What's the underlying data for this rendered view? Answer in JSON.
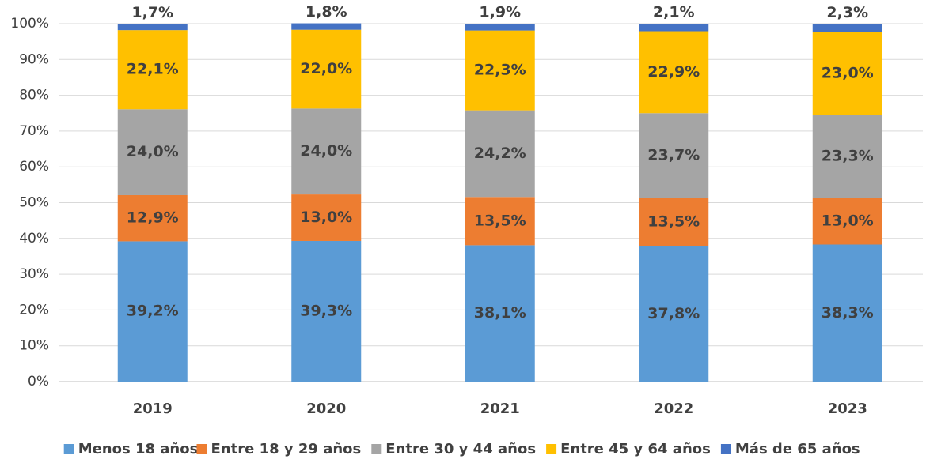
{
  "chart_data": {
    "type": "stacked_bar",
    "categories": [
      "2019",
      "2020",
      "2021",
      "2022",
      "2023"
    ],
    "series": [
      {
        "name": "Menos 18 años",
        "color": "#5b9bd5",
        "values": [
          39.2,
          39.3,
          38.1,
          37.8,
          38.3
        ],
        "value_labels": [
          "39,2%",
          "39,3%",
          "38,1%",
          "37,8%",
          "38,3%"
        ]
      },
      {
        "name": "Entre 18 y 29 años",
        "color": "#ed7d31",
        "values": [
          12.9,
          13.0,
          13.5,
          13.5,
          13.0
        ],
        "value_labels": [
          "12,9%",
          "13,0%",
          "13,5%",
          "13,5%",
          "13,0%"
        ]
      },
      {
        "name": "Entre 30 y 44 años",
        "color": "#a5a5a5",
        "values": [
          24.0,
          24.0,
          24.2,
          23.7,
          23.3
        ],
        "value_labels": [
          "24,0%",
          "24,0%",
          "24,2%",
          "23,7%",
          "23,3%"
        ]
      },
      {
        "name": "Entre 45 y 64 años",
        "color": "#ffc000",
        "values": [
          22.1,
          22.0,
          22.3,
          22.9,
          23.0
        ],
        "value_labels": [
          "22,1%",
          "22,0%",
          "22,3%",
          "22,9%",
          "23,0%"
        ]
      },
      {
        "name": "Más de 65 años",
        "color": "#4472c4",
        "values": [
          1.7,
          1.8,
          1.9,
          2.1,
          2.3
        ],
        "value_labels": [
          "1,7%",
          "1,8%",
          "1,9%",
          "2,1%",
          "2,3%"
        ]
      }
    ],
    "ylim": [
      0,
      100
    ],
    "yticks": [
      {
        "value": 0,
        "label": "0%"
      },
      {
        "value": 10,
        "label": "10%"
      },
      {
        "value": 20,
        "label": "20%"
      },
      {
        "value": 30,
        "label": "30%"
      },
      {
        "value": 40,
        "label": "40%"
      },
      {
        "value": 50,
        "label": "50%"
      },
      {
        "value": 60,
        "label": "60%"
      },
      {
        "value": 70,
        "label": "70%"
      },
      {
        "value": 80,
        "label": "80%"
      },
      {
        "value": 90,
        "label": "90%"
      },
      {
        "value": 100,
        "label": "100%"
      }
    ],
    "grid": true,
    "legend": "bottom"
  }
}
